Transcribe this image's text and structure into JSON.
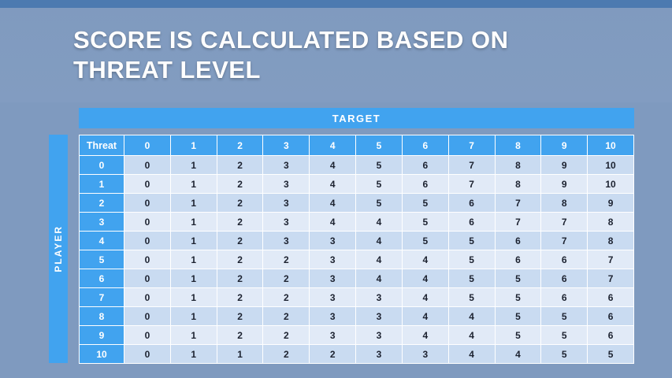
{
  "title": {
    "line1": "SCORE IS CALCULATED BASED ON",
    "line2": "THREAT LEVEL"
  },
  "axes": {
    "target_label": "TARGET",
    "player_label": "PLAYER"
  },
  "table": {
    "corner_label": "Threat",
    "column_headers": [
      "0",
      "1",
      "2",
      "3",
      "4",
      "5",
      "6",
      "7",
      "8",
      "9",
      "10"
    ],
    "rows": [
      {
        "threat": "0",
        "values": [
          "0",
          "1",
          "2",
          "3",
          "4",
          "5",
          "6",
          "7",
          "8",
          "9",
          "10"
        ]
      },
      {
        "threat": "1",
        "values": [
          "0",
          "1",
          "2",
          "3",
          "4",
          "5",
          "6",
          "7",
          "8",
          "9",
          "10"
        ]
      },
      {
        "threat": "2",
        "values": [
          "0",
          "1",
          "2",
          "3",
          "4",
          "5",
          "5",
          "6",
          "7",
          "8",
          "9"
        ]
      },
      {
        "threat": "3",
        "values": [
          "0",
          "1",
          "2",
          "3",
          "4",
          "4",
          "5",
          "6",
          "7",
          "7",
          "8"
        ]
      },
      {
        "threat": "4",
        "values": [
          "0",
          "1",
          "2",
          "3",
          "3",
          "4",
          "5",
          "5",
          "6",
          "7",
          "8"
        ]
      },
      {
        "threat": "5",
        "values": [
          "0",
          "1",
          "2",
          "2",
          "3",
          "4",
          "4",
          "5",
          "6",
          "6",
          "7"
        ]
      },
      {
        "threat": "6",
        "values": [
          "0",
          "1",
          "2",
          "2",
          "3",
          "4",
          "4",
          "5",
          "5",
          "6",
          "7"
        ]
      },
      {
        "threat": "7",
        "values": [
          "0",
          "1",
          "2",
          "2",
          "3",
          "3",
          "4",
          "5",
          "5",
          "6",
          "6"
        ]
      },
      {
        "threat": "8",
        "values": [
          "0",
          "1",
          "2",
          "2",
          "3",
          "3",
          "4",
          "4",
          "5",
          "5",
          "6"
        ]
      },
      {
        "threat": "9",
        "values": [
          "0",
          "1",
          "2",
          "2",
          "3",
          "3",
          "4",
          "4",
          "5",
          "5",
          "6"
        ]
      },
      {
        "threat": "10",
        "values": [
          "0",
          "1",
          "1",
          "2",
          "2",
          "3",
          "3",
          "4",
          "4",
          "5",
          "5"
        ]
      }
    ]
  },
  "colors": {
    "accent_blue": "#41A3EF",
    "row_dark": "#C9DBF1",
    "row_light": "#E1EAF7",
    "top_strip_blue": "#4C7AB0",
    "cell_text": "#1C2230",
    "title_text": "#FFFFFF"
  }
}
